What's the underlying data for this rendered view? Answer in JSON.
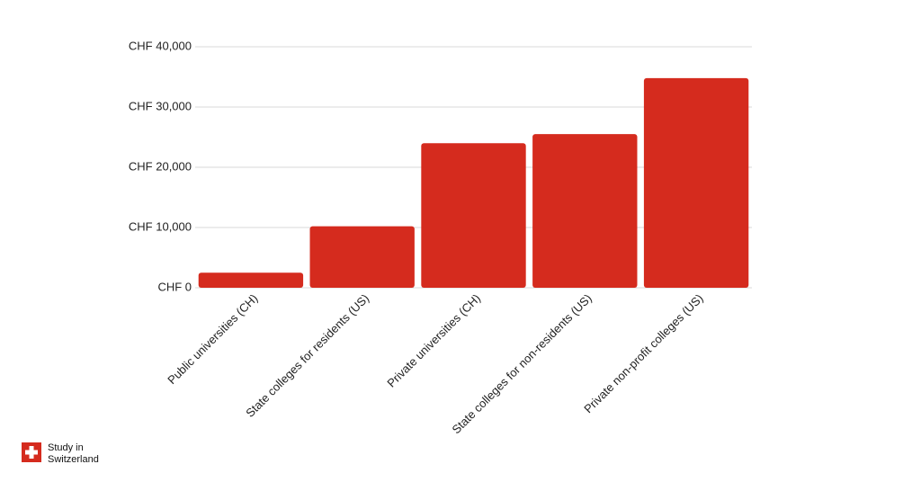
{
  "chart_data": {
    "type": "bar",
    "categories": [
      "Public universities (CH)",
      "State colleges for residents (US)",
      "Private universities (CH)",
      "State colleges for non-residents (US)",
      "Private non-profit colleges (US)"
    ],
    "values": [
      2500,
      10200,
      24000,
      25500,
      34800
    ],
    "color": "#d52b1e",
    "ylim": [
      0,
      40000
    ],
    "yticks": [
      {
        "value": 0,
        "label": "CHF 0"
      },
      {
        "value": 10000,
        "label": "CHF 10,000"
      },
      {
        "value": 20000,
        "label": "CHF 20,000"
      },
      {
        "value": 30000,
        "label": "CHF 30,000"
      },
      {
        "value": 40000,
        "label": "CHF 40,000"
      }
    ],
    "grid": true
  },
  "logo": [
    "Study in",
    "Switzerland"
  ]
}
